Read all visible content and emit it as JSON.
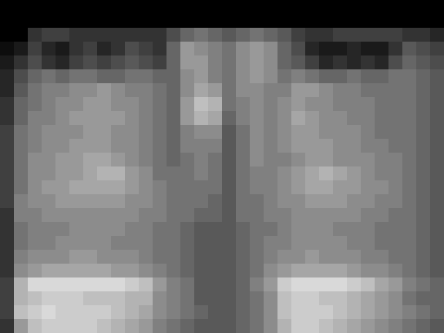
{
  "chart_data": {
    "type": "heatmap",
    "tick_labels": false,
    "xlim": [
      0,
      32
    ],
    "ylim": [
      0,
      24
    ],
    "zlim": [
      0,
      100
    ],
    "cells": [
      [
        0,
        0,
        0,
        0,
        0,
        0,
        0,
        0,
        0,
        0,
        0,
        0,
        0,
        0,
        0,
        0,
        0,
        0,
        0,
        0,
        0,
        0,
        0,
        0,
        0,
        0,
        0,
        0,
        0,
        0,
        0,
        0
      ],
      [
        0,
        0,
        0,
        0,
        0,
        0,
        0,
        0,
        0,
        0,
        0,
        0,
        0,
        0,
        0,
        0,
        0,
        0,
        0,
        0,
        0,
        0,
        0,
        0,
        0,
        0,
        0,
        0,
        0,
        0,
        0,
        0
      ],
      [
        0,
        0,
        20,
        25,
        25,
        20,
        20,
        20,
        20,
        20,
        20,
        20,
        30,
        40,
        45,
        40,
        35,
        40,
        45,
        40,
        35,
        25,
        20,
        20,
        25,
        25,
        25,
        25,
        25,
        20,
        20,
        15
      ],
      [
        5,
        10,
        25,
        15,
        10,
        20,
        25,
        15,
        20,
        30,
        25,
        20,
        40,
        60,
        55,
        50,
        45,
        55,
        60,
        55,
        40,
        30,
        15,
        10,
        10,
        15,
        10,
        10,
        20,
        35,
        30,
        25
      ],
      [
        10,
        20,
        30,
        20,
        15,
        25,
        30,
        25,
        30,
        35,
        30,
        25,
        40,
        60,
        60,
        50,
        45,
        55,
        60,
        55,
        40,
        35,
        25,
        15,
        20,
        15,
        20,
        15,
        30,
        40,
        35,
        30
      ],
      [
        15,
        30,
        40,
        45,
        40,
        45,
        45,
        40,
        40,
        45,
        45,
        40,
        40,
        55,
        60,
        50,
        45,
        55,
        60,
        55,
        45,
        50,
        45,
        40,
        40,
        45,
        40,
        40,
        45,
        45,
        40,
        35
      ],
      [
        15,
        35,
        45,
        50,
        50,
        55,
        55,
        60,
        55,
        50,
        50,
        45,
        40,
        55,
        65,
        60,
        45,
        55,
        55,
        50,
        50,
        60,
        60,
        55,
        50,
        50,
        45,
        45,
        45,
        45,
        40,
        35
      ],
      [
        20,
        40,
        45,
        50,
        55,
        55,
        60,
        60,
        55,
        55,
        50,
        45,
        40,
        60,
        75,
        70,
        45,
        50,
        55,
        50,
        55,
        60,
        55,
        55,
        50,
        50,
        50,
        45,
        45,
        45,
        40,
        35
      ],
      [
        20,
        40,
        50,
        50,
        55,
        60,
        60,
        60,
        60,
        55,
        50,
        45,
        40,
        60,
        70,
        65,
        40,
        50,
        55,
        50,
        55,
        65,
        60,
        55,
        55,
        50,
        50,
        45,
        45,
        45,
        40,
        35
      ],
      [
        25,
        45,
        50,
        55,
        55,
        55,
        60,
        60,
        55,
        55,
        50,
        45,
        40,
        50,
        55,
        55,
        35,
        45,
        55,
        50,
        55,
        60,
        60,
        55,
        55,
        55,
        50,
        45,
        45,
        45,
        40,
        35
      ],
      [
        25,
        45,
        50,
        55,
        55,
        60,
        60,
        60,
        55,
        55,
        50,
        45,
        40,
        50,
        50,
        50,
        35,
        45,
        55,
        50,
        55,
        60,
        60,
        60,
        55,
        55,
        50,
        50,
        45,
        45,
        40,
        35
      ],
      [
        25,
        45,
        55,
        55,
        60,
        60,
        65,
        65,
        60,
        55,
        50,
        45,
        40,
        45,
        50,
        45,
        35,
        45,
        55,
        50,
        50,
        55,
        60,
        60,
        55,
        55,
        55,
        50,
        50,
        45,
        40,
        35
      ],
      [
        25,
        45,
        55,
        55,
        60,
        60,
        65,
        70,
        70,
        60,
        55,
        45,
        45,
        45,
        50,
        45,
        35,
        45,
        50,
        50,
        55,
        60,
        65,
        70,
        65,
        60,
        55,
        50,
        50,
        45,
        40,
        35
      ],
      [
        25,
        45,
        55,
        60,
        60,
        65,
        65,
        65,
        65,
        60,
        55,
        50,
        45,
        45,
        45,
        45,
        35,
        45,
        50,
        50,
        55,
        60,
        65,
        65,
        60,
        60,
        55,
        55,
        50,
        45,
        40,
        35
      ],
      [
        25,
        50,
        55,
        55,
        60,
        60,
        60,
        60,
        60,
        55,
        55,
        50,
        45,
        45,
        45,
        40,
        35,
        45,
        45,
        50,
        55,
        55,
        60,
        60,
        60,
        55,
        55,
        50,
        50,
        45,
        40,
        35
      ],
      [
        20,
        50,
        50,
        55,
        55,
        55,
        55,
        55,
        55,
        55,
        50,
        50,
        45,
        45,
        40,
        40,
        35,
        45,
        45,
        50,
        50,
        55,
        55,
        55,
        55,
        55,
        50,
        50,
        45,
        45,
        40,
        35
      ],
      [
        20,
        45,
        50,
        50,
        50,
        55,
        55,
        55,
        55,
        50,
        50,
        45,
        45,
        40,
        35,
        35,
        35,
        40,
        45,
        45,
        50,
        55,
        55,
        55,
        50,
        50,
        50,
        45,
        45,
        45,
        40,
        35
      ],
      [
        20,
        45,
        50,
        50,
        55,
        55,
        55,
        55,
        50,
        50,
        50,
        45,
        45,
        40,
        35,
        35,
        35,
        40,
        45,
        50,
        50,
        55,
        55,
        55,
        55,
        50,
        50,
        45,
        45,
        45,
        40,
        35
      ],
      [
        20,
        50,
        55,
        55,
        55,
        60,
        60,
        55,
        55,
        55,
        50,
        45,
        45,
        40,
        35,
        35,
        35,
        40,
        45,
        50,
        55,
        55,
        60,
        55,
        55,
        55,
        50,
        50,
        45,
        45,
        40,
        35
      ],
      [
        20,
        55,
        60,
        65,
        65,
        65,
        65,
        65,
        60,
        60,
        55,
        50,
        45,
        40,
        35,
        35,
        35,
        40,
        45,
        55,
        60,
        65,
        65,
        65,
        65,
        60,
        55,
        55,
        50,
        45,
        40,
        35
      ],
      [
        25,
        70,
        85,
        85,
        85,
        85,
        85,
        85,
        85,
        80,
        75,
        60,
        50,
        45,
        35,
        35,
        35,
        40,
        50,
        60,
        80,
        85,
        85,
        85,
        85,
        80,
        75,
        65,
        60,
        50,
        45,
        40
      ],
      [
        25,
        70,
        75,
        80,
        80,
        80,
        75,
        75,
        75,
        70,
        70,
        55,
        50,
        45,
        35,
        35,
        35,
        40,
        45,
        55,
        75,
        80,
        80,
        75,
        75,
        70,
        65,
        60,
        55,
        45,
        40,
        40
      ],
      [
        25,
        75,
        80,
        85,
        80,
        80,
        80,
        80,
        75,
        70,
        65,
        55,
        50,
        45,
        40,
        35,
        35,
        40,
        45,
        55,
        75,
        80,
        80,
        80,
        75,
        70,
        65,
        60,
        55,
        50,
        45,
        40
      ],
      [
        20,
        60,
        75,
        80,
        80,
        80,
        80,
        75,
        70,
        65,
        60,
        50,
        45,
        40,
        35,
        35,
        35,
        40,
        45,
        55,
        70,
        80,
        80,
        75,
        70,
        65,
        60,
        55,
        50,
        45,
        40,
        35
      ]
    ]
  }
}
